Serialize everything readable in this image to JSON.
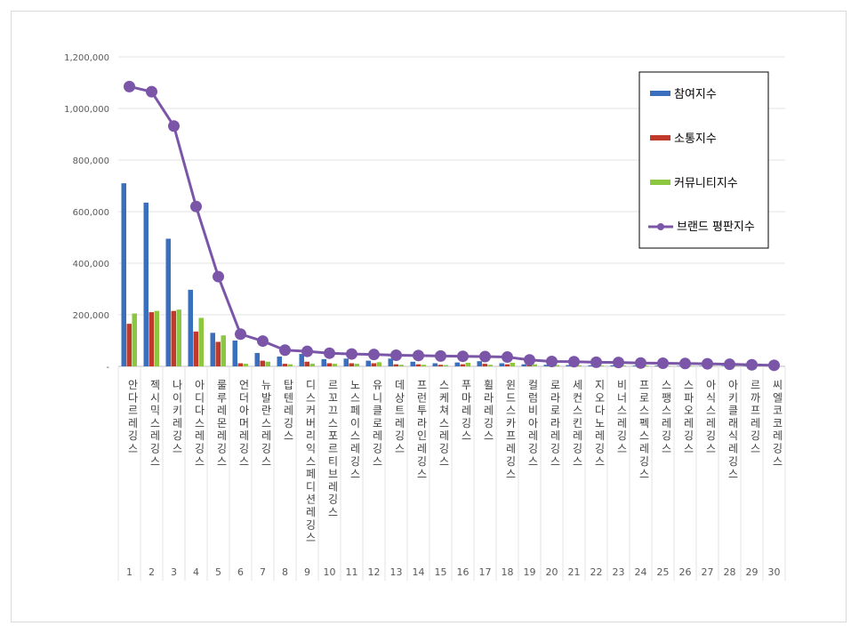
{
  "chart_data": {
    "type": "bar",
    "title": "",
    "xlabel": "",
    "ylabel": "",
    "ylim": [
      0,
      1200000
    ],
    "y_ticks": [
      "-",
      "200,000",
      "400,000",
      "600,000",
      "800,000",
      "1,000,000",
      "1,200,000"
    ],
    "grid": true,
    "legend_position": "top-right",
    "x_numbers": [
      "1",
      "2",
      "3",
      "4",
      "5",
      "6",
      "7",
      "8",
      "9",
      "10",
      "11",
      "12",
      "13",
      "14",
      "15",
      "16",
      "17",
      "18",
      "19",
      "20",
      "21",
      "22",
      "23",
      "24",
      "25",
      "26",
      "27",
      "28",
      "29",
      "30"
    ],
    "categories": [
      "안다르레깅스",
      "젝시믹스레깅스",
      "나이키레깅스",
      "아디다스레깅스",
      "룰루레몬레깅스",
      "언더아머레깅스",
      "뉴발란스레깅스",
      "탑텐레깅스",
      "디스커버리익스페디션레깅스",
      "르꼬끄스포르티브레깅스",
      "노스페이스레깅스",
      "유니클로레깅스",
      "데상트레깅스",
      "프런투라인레깅스",
      "스케쳐스레깅스",
      "푸마레깅스",
      "휠라레깅스",
      "윈드스카프레깅스",
      "컬럼비아레깅스",
      "로라로라레깅스",
      "세컨스킨레깅스",
      "지오다노레깅스",
      "비너스레깅스",
      "프로스펙스레깅스",
      "스팽스레깅스",
      "스파오레깅스",
      "아식스레깅스",
      "아키클래식레깅스",
      "르까프레깅스",
      "씨엘코코레깅스"
    ],
    "series": [
      {
        "name": "참여지수",
        "type": "bar",
        "color": "#3a6fbd",
        "values": [
          710000,
          635000,
          495000,
          297000,
          130000,
          100000,
          52000,
          38000,
          48000,
          28000,
          30000,
          22000,
          30000,
          18000,
          12000,
          15000,
          20000,
          12000,
          8000,
          6000,
          5000,
          4000,
          4000,
          3000,
          3000,
          2000,
          2000,
          2000,
          1500,
          1000
        ]
      },
      {
        "name": "소통지수",
        "type": "bar",
        "color": "#c0392b",
        "values": [
          165000,
          210000,
          215000,
          135000,
          95000,
          12000,
          22000,
          10000,
          18000,
          12000,
          12000,
          12000,
          8000,
          8000,
          6000,
          8000,
          10000,
          8000,
          6000,
          5000,
          4000,
          3000,
          3000,
          3000,
          2000,
          2000,
          2000,
          2000,
          1500,
          1000
        ]
      },
      {
        "name": "커뮤니티지수",
        "type": "bar",
        "color": "#8dc63f",
        "values": [
          205000,
          215000,
          220000,
          188000,
          120000,
          10000,
          18000,
          8000,
          10000,
          10000,
          10000,
          16000,
          6000,
          6000,
          5000,
          14000,
          6000,
          14000,
          8000,
          5000,
          4000,
          3000,
          3000,
          3000,
          2000,
          2000,
          2000,
          2000,
          1500,
          1000
        ]
      },
      {
        "name": "브랜드 평판지수",
        "type": "line",
        "color": "#7b56a8",
        "values": [
          1085000,
          1065000,
          932000,
          620000,
          348000,
          125000,
          98000,
          63000,
          58000,
          51000,
          48000,
          46000,
          43000,
          42000,
          40000,
          39000,
          38000,
          36000,
          25000,
          19000,
          18000,
          16000,
          15000,
          13000,
          12000,
          11000,
          10000,
          8000,
          6000,
          4000
        ]
      }
    ]
  }
}
